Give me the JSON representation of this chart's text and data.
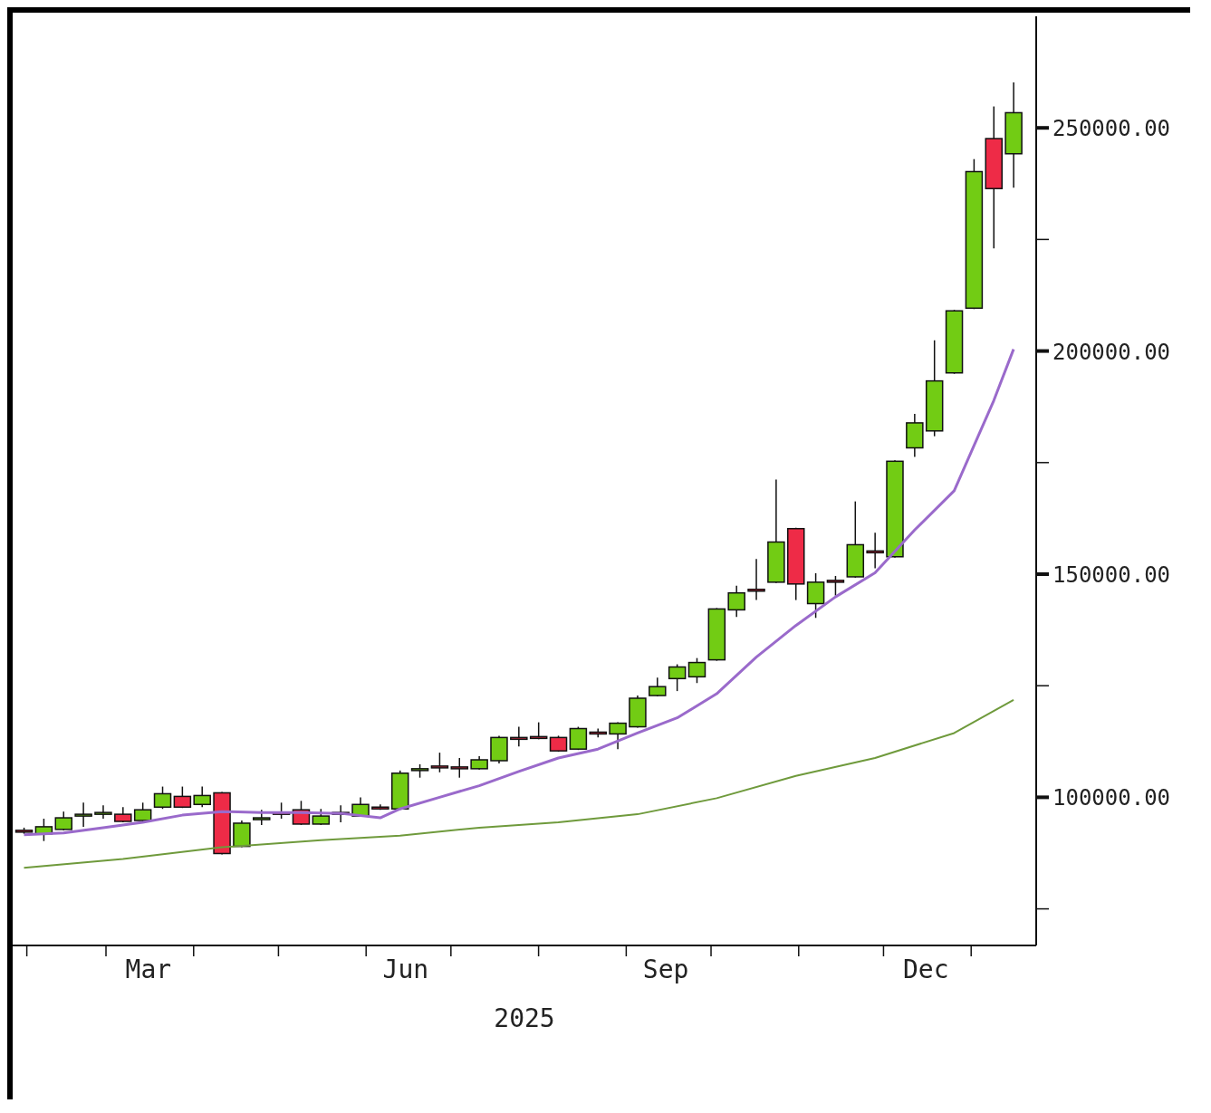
{
  "chart_data": {
    "type": "candlestick",
    "xlabel": "2025",
    "x": [
      "2025-01-31",
      "2025-02-07",
      "2025-02-14",
      "2025-02-21",
      "2025-02-28",
      "2025-03-07",
      "2025-03-14",
      "2025-03-21",
      "2025-03-28",
      "2025-04-04",
      "2025-04-11",
      "2025-04-18",
      "2025-04-25",
      "2025-05-02",
      "2025-05-09",
      "2025-05-16",
      "2025-05-23",
      "2025-05-30",
      "2025-06-06",
      "2025-06-13",
      "2025-06-20",
      "2025-06-27",
      "2025-07-04",
      "2025-07-11",
      "2025-07-18",
      "2025-07-25",
      "2025-08-01",
      "2025-08-08",
      "2025-08-15",
      "2025-08-22",
      "2025-08-29",
      "2025-09-05",
      "2025-09-12",
      "2025-09-19",
      "2025-09-26",
      "2025-10-03",
      "2025-10-10",
      "2025-10-17",
      "2025-10-24",
      "2025-10-31",
      "2025-11-07",
      "2025-11-14",
      "2025-11-21",
      "2025-11-28",
      "2025-12-05",
      "2025-12-12",
      "2025-12-19",
      "2025-12-26",
      "2026-01-02",
      "2026-01-09",
      "2026-01-16"
    ],
    "ohlc": [
      [
        92600,
        93200,
        91800,
        92200
      ],
      [
        91800,
        95200,
        90200,
        93400
      ],
      [
        92800,
        96800,
        92600,
        95400
      ],
      [
        96000,
        98800,
        93400,
        96200
      ],
      [
        96400,
        98200,
        95200,
        96600
      ],
      [
        96200,
        97800,
        94400,
        94600
      ],
      [
        94800,
        98800,
        94600,
        97200
      ],
      [
        97800,
        102400,
        97400,
        100800
      ],
      [
        100200,
        102400,
        97600,
        97800
      ],
      [
        98400,
        102400,
        97800,
        100400
      ],
      [
        101000,
        101200,
        87200,
        87400
      ],
      [
        89000,
        94800,
        88800,
        94200
      ],
      [
        95000,
        97200,
        93800,
        95400
      ],
      [
        96600,
        98800,
        95200,
        96200
      ],
      [
        97200,
        99200,
        93800,
        94000
      ],
      [
        94000,
        97400,
        93800,
        95800
      ],
      [
        96600,
        98200,
        94400,
        96200
      ],
      [
        95800,
        100000,
        95600,
        98400
      ],
      [
        97800,
        98400,
        97200,
        97400
      ],
      [
        97400,
        106000,
        97200,
        105400
      ],
      [
        106000,
        107400,
        104400,
        106400
      ],
      [
        107000,
        110000,
        105600,
        106600
      ],
      [
        106800,
        108800,
        104400,
        106400
      ],
      [
        106400,
        109200,
        106200,
        108400
      ],
      [
        108200,
        113800,
        107600,
        113400
      ],
      [
        113400,
        115800,
        111400,
        113000
      ],
      [
        113600,
        116800,
        113000,
        113200
      ],
      [
        113400,
        113800,
        110200,
        110400
      ],
      [
        110800,
        115800,
        110600,
        115400
      ],
      [
        114600,
        115400,
        113400,
        114200
      ],
      [
        114200,
        116800,
        110800,
        116600
      ],
      [
        115800,
        122800,
        115600,
        122200
      ],
      [
        122800,
        126800,
        122600,
        124800
      ],
      [
        126600,
        129800,
        123800,
        129200
      ],
      [
        127000,
        131200,
        125600,
        130200
      ],
      [
        130800,
        142400,
        130600,
        142200
      ],
      [
        142000,
        147400,
        140400,
        145800
      ],
      [
        146600,
        153400,
        144200,
        146200
      ],
      [
        148200,
        171200,
        148000,
        157200
      ],
      [
        160200,
        160400,
        144200,
        147800
      ],
      [
        143400,
        150200,
        140200,
        148200
      ],
      [
        148600,
        149600,
        145200,
        148200
      ],
      [
        149400,
        166300,
        149200,
        156600
      ],
      [
        155200,
        159300,
        151300,
        154800
      ],
      [
        153900,
        175500,
        153700,
        175300
      ],
      [
        178300,
        185900,
        176300,
        183900
      ],
      [
        182100,
        202400,
        180900,
        193300
      ],
      [
        195100,
        209200,
        194900,
        209000
      ],
      [
        209600,
        243000,
        209400,
        240200
      ],
      [
        247600,
        254800,
        223000,
        236400
      ],
      [
        244200,
        260200,
        236600,
        253400
      ]
    ],
    "colors": [
      "#ee2b47",
      "#72cc14",
      "#72cc14",
      "#72cc14",
      "#72cc14",
      "#ee2b47",
      "#72cc14",
      "#72cc14",
      "#ee2b47",
      "#72cc14",
      "#ee2b47",
      "#72cc14",
      "#72cc14",
      "#ee2b47",
      "#ee2b47",
      "#72cc14",
      "#ee2b47",
      "#72cc14",
      "#ee2b47",
      "#72cc14",
      "#72cc14",
      "#ee2b47",
      "#ee2b47",
      "#72cc14",
      "#72cc14",
      "#ee2b47",
      "#ee2b47",
      "#ee2b47",
      "#72cc14",
      "#ee2b47",
      "#72cc14",
      "#72cc14",
      "#72cc14",
      "#72cc14",
      "#72cc14",
      "#72cc14",
      "#72cc14",
      "#ee2b47",
      "#72cc14",
      "#ee2b47",
      "#72cc14",
      "#ee2b47",
      "#72cc14",
      "#ee2b47",
      "#72cc14",
      "#72cc14",
      "#72cc14",
      "#72cc14",
      "#72cc14",
      "#ee2b47",
      "#72cc14"
    ],
    "series": [
      {
        "type": "line",
        "color": "#9a6acb",
        "x": [
          "2025-01-31",
          "2025-02-14",
          "2025-02-28",
          "2025-03-14",
          "2025-03-28",
          "2025-04-11",
          "2025-04-25",
          "2025-05-09",
          "2025-05-23",
          "2025-06-06",
          "2025-06-13",
          "2025-06-27",
          "2025-07-11",
          "2025-07-25",
          "2025-08-08",
          "2025-08-22",
          "2025-09-05",
          "2025-09-19",
          "2025-10-03",
          "2025-10-17",
          "2025-10-31",
          "2025-11-14",
          "2025-11-28",
          "2025-12-12",
          "2025-12-26",
          "2026-01-09",
          "2026-01-16"
        ],
        "values": [
          91600,
          92000,
          93200,
          94400,
          96000,
          96800,
          96600,
          96600,
          96400,
          95400,
          97400,
          100000,
          102600,
          105800,
          108800,
          110800,
          114400,
          117800,
          123200,
          131400,
          138500,
          144900,
          150300,
          159900,
          168700,
          188900,
          200400
        ]
      },
      {
        "type": "line",
        "color": "#6f9a3c",
        "x": [
          "2025-01-31",
          "2025-03-07",
          "2025-04-11",
          "2025-05-16",
          "2025-06-13",
          "2025-07-11",
          "2025-08-08",
          "2025-09-05",
          "2025-10-03",
          "2025-10-31",
          "2025-11-28",
          "2025-12-26",
          "2026-01-16"
        ],
        "values": [
          84200,
          86200,
          88800,
          90400,
          91400,
          93200,
          94400,
          96200,
          99800,
          104800,
          108800,
          114400,
          121800
        ]
      }
    ],
    "xlim": [
      "2025-01-27",
      "2026-01-24"
    ],
    "xticks": [
      {
        "value": "2025-02-01",
        "label": null
      },
      {
        "value": "2025-03-01",
        "label": null
      },
      {
        "value": "2025-03-16",
        "label": "Mar"
      },
      {
        "value": "2025-04-01",
        "label": null
      },
      {
        "value": "2025-05-01",
        "label": null
      },
      {
        "value": "2025-06-01",
        "label": null
      },
      {
        "value": "2025-06-15",
        "label": "Jun"
      },
      {
        "value": "2025-07-01",
        "label": null
      },
      {
        "value": "2025-08-01",
        "label": null
      },
      {
        "value": "2025-09-01",
        "label": null
      },
      {
        "value": "2025-09-15",
        "label": "Sep"
      },
      {
        "value": "2025-10-01",
        "label": null
      },
      {
        "value": "2025-11-01",
        "label": null
      },
      {
        "value": "2025-12-01",
        "label": null
      },
      {
        "value": "2025-12-16",
        "label": "Dec"
      },
      {
        "value": "2026-01-01",
        "label": null
      }
    ],
    "ylim": [
      66800,
      275000
    ],
    "yticks": [
      {
        "value": 75000,
        "label": null
      },
      {
        "value": 100000,
        "label": "100000.00"
      },
      {
        "value": 125000,
        "label": null
      },
      {
        "value": 150000,
        "label": "150000.00"
      },
      {
        "value": 175000,
        "label": null
      },
      {
        "value": 200000,
        "label": "200000.00"
      },
      {
        "value": 225000,
        "label": null
      },
      {
        "value": 250000,
        "label": "250000.00"
      }
    ]
  }
}
